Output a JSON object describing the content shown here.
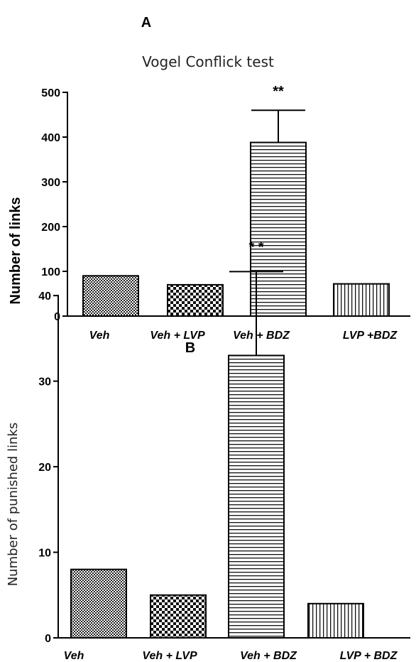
{
  "chart_data": [
    {
      "panel": "A",
      "type": "bar",
      "title": "Vogel Conflick test",
      "ylabel": "Number of links",
      "xlabel": "",
      "ylim": [
        0,
        500
      ],
      "yticks": [
        0,
        100,
        200,
        300,
        400,
        500
      ],
      "categories": [
        "Veh",
        "Veh + LVP",
        "Veh + BDZ",
        "LVP +BDZ"
      ],
      "values": [
        90,
        70,
        388,
        72
      ],
      "errors": [
        0,
        0,
        72,
        0
      ],
      "patterns": [
        "checker-fine",
        "checker-coarse",
        "horizontal",
        "vertical"
      ],
      "annotations": [
        {
          "category": "Veh + BDZ",
          "text": "**"
        }
      ],
      "grid": false,
      "legend": "none"
    },
    {
      "panel": "B",
      "type": "bar",
      "title": "",
      "ylabel": "Number of punished links",
      "xlabel": "",
      "ylim": [
        0,
        43
      ],
      "yticks": [
        0,
        10,
        20,
        30,
        40
      ],
      "categories": [
        "Veh",
        "Veh + LVP",
        "Veh + BDZ",
        "LVP + BDZ"
      ],
      "values": [
        8,
        5,
        33,
        4
      ],
      "errors": [
        0,
        0,
        9.8,
        0
      ],
      "patterns": [
        "checker-fine",
        "checker-coarse",
        "horizontal",
        "vertical"
      ],
      "annotations": [
        {
          "category": "Veh + BDZ",
          "text": "* *"
        }
      ],
      "grid": false,
      "legend": "none"
    }
  ]
}
